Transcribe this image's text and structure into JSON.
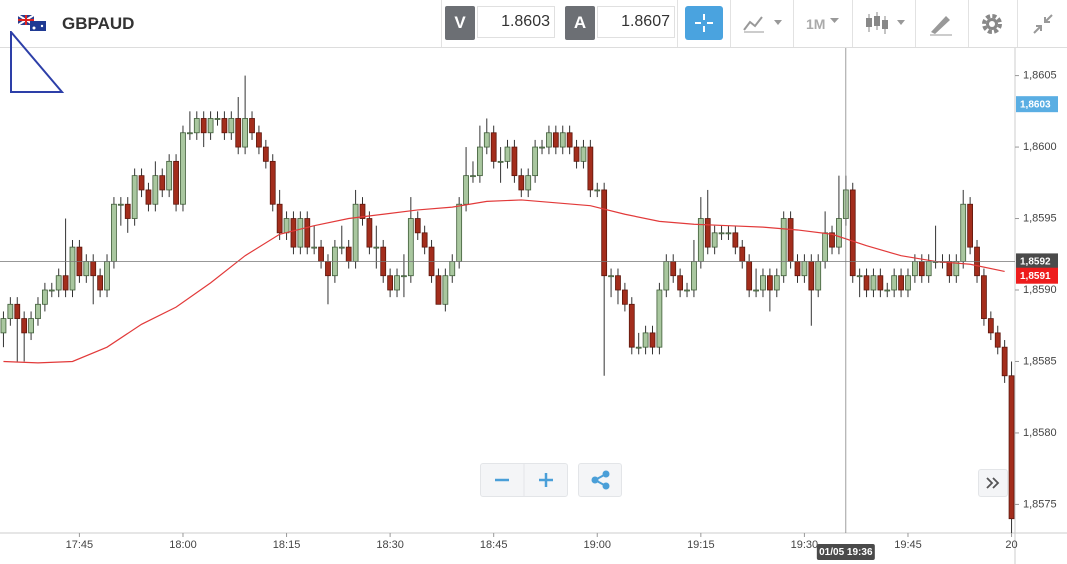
{
  "toolbar": {
    "symbol": "GBPAUD",
    "bid_label": "V",
    "bid": 1.8603,
    "ask_label": "A",
    "ask": 1.8607,
    "timeframe": "1M"
  },
  "chart_data": {
    "type": "candlestick",
    "up_color": "#a9c79f",
    "down_color": "#a32d1c",
    "xlim": [
      1053.5,
      1200.5
    ],
    "ylim": [
      1.8573,
      1.8607
    ],
    "xticks": [
      {
        "value": 1065,
        "label": "17:45"
      },
      {
        "value": 1080,
        "label": "18:00"
      },
      {
        "value": 1095,
        "label": "18:15"
      },
      {
        "value": 1110,
        "label": "18:30"
      },
      {
        "value": 1125,
        "label": "18:45"
      },
      {
        "value": 1140,
        "label": "19:00"
      },
      {
        "value": 1155,
        "label": "19:15"
      },
      {
        "value": 1170,
        "label": "19:30"
      },
      {
        "value": 1185,
        "label": "19:45"
      },
      {
        "value": 1200,
        "label": "20"
      }
    ],
    "yticks": [
      {
        "value": 1.8605,
        "label": "1,8605"
      },
      {
        "value": 1.86,
        "label": "1,8600"
      },
      {
        "value": 1.8595,
        "label": "1,8595"
      },
      {
        "value": 1.859,
        "label": "1,8590"
      },
      {
        "value": 1.8585,
        "label": "1,8585"
      },
      {
        "value": 1.858,
        "label": "1,8580"
      },
      {
        "value": 1.8575,
        "label": "1,8575"
      }
    ],
    "x": [
      1054,
      1055,
      1056,
      1057,
      1058,
      1059,
      1060,
      1061,
      1062,
      1063,
      1064,
      1065,
      1066,
      1067,
      1068,
      1069,
      1070,
      1071,
      1072,
      1073,
      1074,
      1075,
      1076,
      1077,
      1078,
      1079,
      1080,
      1081,
      1082,
      1083,
      1084,
      1085,
      1086,
      1087,
      1088,
      1089,
      1090,
      1091,
      1092,
      1093,
      1094,
      1095,
      1096,
      1097,
      1098,
      1099,
      1100,
      1101,
      1102,
      1103,
      1104,
      1105,
      1106,
      1107,
      1108,
      1109,
      1110,
      1111,
      1112,
      1113,
      1114,
      1115,
      1116,
      1117,
      1118,
      1119,
      1120,
      1121,
      1122,
      1123,
      1124,
      1125,
      1126,
      1127,
      1128,
      1129,
      1130,
      1131,
      1132,
      1133,
      1134,
      1135,
      1136,
      1137,
      1138,
      1139,
      1140,
      1141,
      1142,
      1143,
      1144,
      1145,
      1146,
      1147,
      1148,
      1149,
      1150,
      1151,
      1152,
      1153,
      1154,
      1155,
      1156,
      1157,
      1158,
      1159,
      1160,
      1161,
      1162,
      1163,
      1164,
      1165,
      1166,
      1167,
      1168,
      1169,
      1170,
      1171,
      1172,
      1173,
      1174,
      1175,
      1176,
      1177,
      1178,
      1179,
      1180,
      1181,
      1182,
      1183,
      1184,
      1185,
      1186,
      1187,
      1188,
      1189,
      1190,
      1191,
      1192,
      1193,
      1194,
      1195,
      1196,
      1197,
      1198,
      1199,
      1200
    ],
    "open": [
      1.8587,
      1.8588,
      1.8589,
      1.8588,
      1.8587,
      1.8588,
      1.8589,
      1.859,
      1.859,
      1.8591,
      1.859,
      1.8593,
      1.8591,
      1.8592,
      1.8591,
      1.859,
      1.8592,
      1.8596,
      1.8596,
      1.8595,
      1.8598,
      1.8597,
      1.8596,
      1.8598,
      1.8597,
      1.8599,
      1.8596,
      1.8601,
      1.8601,
      1.8602,
      1.8601,
      1.8602,
      1.8602,
      1.8601,
      1.8602,
      1.86,
      1.8602,
      1.8601,
      1.86,
      1.8599,
      1.8596,
      1.8594,
      1.8595,
      1.8593,
      1.8595,
      1.8593,
      1.8593,
      1.8592,
      1.8591,
      1.8593,
      1.8593,
      1.8592,
      1.8596,
      1.8595,
      1.8593,
      1.8593,
      1.8591,
      1.859,
      1.8591,
      1.8591,
      1.8595,
      1.8594,
      1.8593,
      1.8591,
      1.8589,
      1.8591,
      1.8592,
      1.8596,
      1.8598,
      1.8598,
      1.86,
      1.8601,
      1.8599,
      1.8599,
      1.86,
      1.8598,
      1.8597,
      1.8598,
      1.86,
      1.86,
      1.8601,
      1.86,
      1.8601,
      1.86,
      1.8599,
      1.86,
      1.8597,
      1.8597,
      1.8591,
      1.8591,
      1.859,
      1.8589,
      1.8586,
      1.8586,
      1.8587,
      1.8586,
      1.859,
      1.8592,
      1.8591,
      1.859,
      1.859,
      1.8592,
      1.8595,
      1.8593,
      1.8594,
      1.8594,
      1.8594,
      1.8593,
      1.8592,
      1.859,
      1.859,
      1.8591,
      1.859,
      1.8591,
      1.8595,
      1.8592,
      1.8591,
      1.8592,
      1.859,
      1.8592,
      1.8594,
      1.8593,
      1.8595,
      1.8597,
      1.8591,
      1.8591,
      1.859,
      1.8591,
      1.859,
      1.859,
      1.8591,
      1.859,
      1.8591,
      1.8592,
      1.8591,
      1.8592,
      1.8592,
      1.8592,
      1.8591,
      1.8592,
      1.8596,
      1.8593,
      1.8591,
      1.8588,
      1.8587,
      1.8586,
      1.8584
    ],
    "high": [
      1.85885,
      1.85895,
      1.85895,
      1.85885,
      1.85885,
      1.85895,
      1.85905,
      1.85905,
      1.85915,
      1.8595,
      1.85935,
      1.85935,
      1.85925,
      1.85925,
      1.85915,
      1.85925,
      1.85965,
      1.85965,
      1.85965,
      1.85985,
      1.85985,
      1.85975,
      1.8599,
      1.85985,
      1.85995,
      1.85995,
      1.86015,
      1.86025,
      1.86025,
      1.86025,
      1.86025,
      1.86025,
      1.86025,
      1.86025,
      1.86035,
      1.8605,
      1.86025,
      1.86015,
      1.86005,
      1.85995,
      1.8597,
      1.85955,
      1.85955,
      1.85955,
      1.85955,
      1.85945,
      1.85935,
      1.85925,
      1.85935,
      1.85945,
      1.85935,
      1.8597,
      1.85965,
      1.85955,
      1.85945,
      1.85935,
      1.85915,
      1.85915,
      1.85925,
      1.85965,
      1.85955,
      1.85945,
      1.85935,
      1.85915,
      1.85915,
      1.85925,
      1.85965,
      1.86,
      1.8599,
      1.86015,
      1.8602,
      1.86015,
      1.86,
      1.86005,
      1.86005,
      1.85985,
      1.85985,
      1.86005,
      1.86005,
      1.86015,
      1.86015,
      1.86015,
      1.86015,
      1.86005,
      1.86005,
      1.86005,
      1.85975,
      1.85975,
      1.85915,
      1.85915,
      1.85905,
      1.85895,
      1.8587,
      1.85875,
      1.85875,
      1.85905,
      1.85925,
      1.85925,
      1.85915,
      1.85905,
      1.85935,
      1.85965,
      1.8597,
      1.85945,
      1.85945,
      1.85945,
      1.85945,
      1.85935,
      1.85925,
      1.85915,
      1.85915,
      1.85915,
      1.85915,
      1.85955,
      1.85955,
      1.85925,
      1.85925,
      1.85925,
      1.85925,
      1.85955,
      1.85945,
      1.8598,
      1.8598,
      1.85975,
      1.85915,
      1.85915,
      1.85915,
      1.85915,
      1.85905,
      1.85915,
      1.85915,
      1.85915,
      1.85925,
      1.85925,
      1.85925,
      1.85945,
      1.85925,
      1.85925,
      1.85925,
      1.8597,
      1.85965,
      1.85935,
      1.85915,
      1.85885,
      1.85875,
      1.85865,
      1.8585
    ],
    "low": [
      1.8586,
      1.85875,
      1.8585,
      1.8585,
      1.85865,
      1.85875,
      1.85885,
      1.85895,
      1.85895,
      1.85895,
      1.85895,
      1.85905,
      1.85905,
      1.8589,
      1.85895,
      1.85895,
      1.85915,
      1.85945,
      1.8594,
      1.85945,
      1.85965,
      1.85955,
      1.85955,
      1.85965,
      1.85965,
      1.85955,
      1.85955,
      1.86005,
      1.86005,
      1.86,
      1.86005,
      1.86015,
      1.86005,
      1.86005,
      1.85995,
      1.85995,
      1.86005,
      1.85995,
      1.85985,
      1.85955,
      1.85935,
      1.85935,
      1.85925,
      1.85925,
      1.85925,
      1.85925,
      1.85915,
      1.8589,
      1.85905,
      1.85925,
      1.85915,
      1.85915,
      1.85945,
      1.85925,
      1.85915,
      1.85905,
      1.85895,
      1.85895,
      1.85895,
      1.85905,
      1.85935,
      1.85925,
      1.85905,
      1.8589,
      1.85885,
      1.85905,
      1.85915,
      1.85955,
      1.85975,
      1.85975,
      1.85995,
      1.85985,
      1.85975,
      1.85985,
      1.85975,
      1.85965,
      1.85965,
      1.85975,
      1.85995,
      1.85995,
      1.85995,
      1.85995,
      1.85995,
      1.85985,
      1.85985,
      1.85965,
      1.85965,
      1.8584,
      1.85895,
      1.8589,
      1.85885,
      1.85855,
      1.85855,
      1.85855,
      1.85855,
      1.85855,
      1.85895,
      1.85905,
      1.85895,
      1.85895,
      1.85895,
      1.85915,
      1.85925,
      1.85925,
      1.85935,
      1.85935,
      1.85925,
      1.85915,
      1.85895,
      1.85895,
      1.85895,
      1.85885,
      1.85895,
      1.85905,
      1.85915,
      1.85905,
      1.85905,
      1.85875,
      1.85895,
      1.85915,
      1.85925,
      1.85925,
      1.85945,
      1.85905,
      1.85895,
      1.85895,
      1.85895,
      1.85895,
      1.85895,
      1.85895,
      1.85895,
      1.85895,
      1.85905,
      1.85905,
      1.85905,
      1.85915,
      1.85915,
      1.85905,
      1.85905,
      1.85915,
      1.85925,
      1.85905,
      1.85875,
      1.85865,
      1.85855,
      1.85835,
      1.8573
    ],
    "close": [
      1.8588,
      1.8589,
      1.8588,
      1.8587,
      1.8588,
      1.8589,
      1.859,
      1.859,
      1.8591,
      1.859,
      1.8593,
      1.8591,
      1.8592,
      1.8591,
      1.859,
      1.8592,
      1.8596,
      1.8596,
      1.8595,
      1.8598,
      1.8597,
      1.8596,
      1.8598,
      1.8597,
      1.8599,
      1.8596,
      1.8601,
      1.8601,
      1.8602,
      1.8601,
      1.8602,
      1.8602,
      1.8601,
      1.8602,
      1.86,
      1.8602,
      1.8601,
      1.86,
      1.8599,
      1.8596,
      1.8594,
      1.8595,
      1.8593,
      1.8595,
      1.8593,
      1.8593,
      1.8592,
      1.8591,
      1.8593,
      1.8593,
      1.8592,
      1.8596,
      1.8595,
      1.8593,
      1.8593,
      1.8591,
      1.859,
      1.8591,
      1.8591,
      1.8595,
      1.8594,
      1.8593,
      1.8591,
      1.8589,
      1.8591,
      1.8592,
      1.8596,
      1.8598,
      1.8598,
      1.86,
      1.8601,
      1.8599,
      1.8599,
      1.86,
      1.8598,
      1.8597,
      1.8598,
      1.86,
      1.86,
      1.8601,
      1.86,
      1.8601,
      1.86,
      1.8599,
      1.86,
      1.8597,
      1.8597,
      1.8591,
      1.8591,
      1.859,
      1.8589,
      1.8586,
      1.8586,
      1.8587,
      1.8586,
      1.859,
      1.8592,
      1.8591,
      1.859,
      1.859,
      1.8592,
      1.8595,
      1.8593,
      1.8594,
      1.8594,
      1.8594,
      1.8593,
      1.8592,
      1.859,
      1.859,
      1.8591,
      1.859,
      1.8591,
      1.8595,
      1.8592,
      1.8591,
      1.8592,
      1.859,
      1.8592,
      1.8594,
      1.8593,
      1.8595,
      1.8597,
      1.8591,
      1.8591,
      1.859,
      1.8591,
      1.859,
      1.859,
      1.8591,
      1.859,
      1.8591,
      1.8592,
      1.8591,
      1.8592,
      1.8592,
      1.8592,
      1.8591,
      1.8592,
      1.8596,
      1.8593,
      1.8591,
      1.8588,
      1.8587,
      1.8586,
      1.8584,
      1.8574
    ],
    "moving_average": {
      "color": "#e23a3a",
      "x": [
        1054,
        1059,
        1064,
        1069,
        1074,
        1079,
        1084,
        1089,
        1094,
        1099,
        1104,
        1109,
        1114,
        1119,
        1124,
        1129,
        1134,
        1139,
        1144,
        1149,
        1154,
        1159,
        1164,
        1169,
        1174,
        1179,
        1184,
        1189,
        1194,
        1199
      ],
      "values": [
        1.8585,
        1.85849,
        1.8585,
        1.8586,
        1.85876,
        1.85888,
        1.85905,
        1.85924,
        1.85939,
        1.85945,
        1.8595,
        1.85953,
        1.85956,
        1.85958,
        1.85962,
        1.85963,
        1.85961,
        1.85959,
        1.85953,
        1.85948,
        1.85946,
        1.85945,
        1.85944,
        1.85942,
        1.85939,
        1.85931,
        1.85924,
        1.8592,
        1.85918,
        1.85913
      ]
    },
    "crosshair": {
      "x": 1176,
      "x_label": "01/05 19:36",
      "y": {
        "value": 1.8592,
        "label": "1,8592"
      }
    },
    "price_tags": [
      {
        "value": 1.8603,
        "label": "1,8603",
        "color": "#5aaee3"
      },
      {
        "value": 1.8591,
        "label": "1,8591",
        "color": "#ee1c1c"
      }
    ]
  }
}
